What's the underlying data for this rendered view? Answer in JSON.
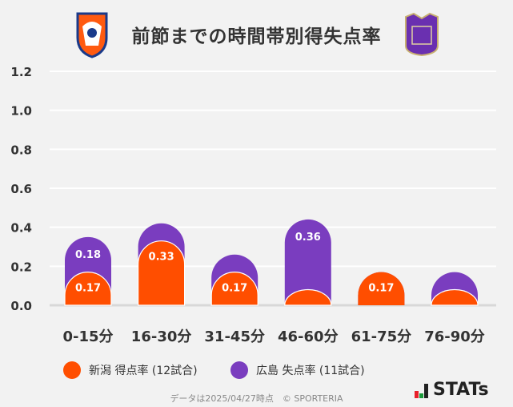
{
  "title": "前節までの時間帯別得失点率",
  "colors": {
    "niigata": "#ff4e00",
    "hiroshima": "#7a3dbf"
  },
  "chart_data": {
    "type": "bar",
    "stacked": true,
    "categories": [
      "0-15分",
      "16-30分",
      "31-45分",
      "46-60分",
      "61-75分",
      "76-90分"
    ],
    "series": [
      {
        "name": "新潟 得点率 (12試合)",
        "values": [
          0.17,
          0.33,
          0.17,
          0.08,
          0.17,
          0.08
        ],
        "labels": [
          "0.17",
          "0.33",
          "0.17",
          "",
          "0.17",
          ""
        ]
      },
      {
        "name": "広島 失点率 (11試合)",
        "values": [
          0.18,
          0.09,
          0.09,
          0.36,
          0,
          0.09
        ],
        "labels": [
          "0.18",
          "",
          "",
          "0.36",
          "",
          ""
        ]
      }
    ],
    "ylim": [
      0,
      1.2
    ],
    "yticks": [
      "0.0",
      "0.2",
      "0.4",
      "0.6",
      "0.8",
      "1.0",
      "1.2"
    ],
    "grid": true,
    "legend": "bottom"
  },
  "footer": "データは2025/04/27時点　© SPORTERIA",
  "brand": "STATs",
  "logos": {
    "left": "albirex-niigata-crest",
    "right": "sanfrecce-hiroshima-crest"
  }
}
